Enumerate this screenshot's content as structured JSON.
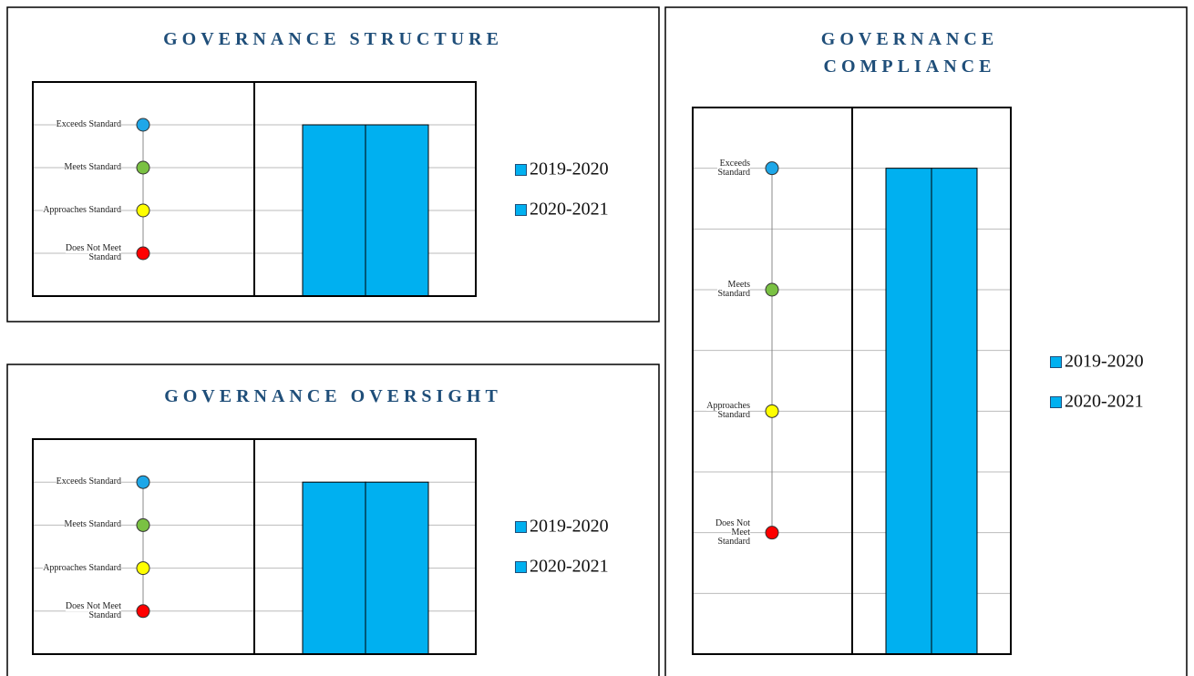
{
  "chart_data": [
    {
      "type": "bar",
      "title": "GOVERNANCE STRUCTURE",
      "categories": [
        null
      ],
      "series": [
        {
          "name": "2019-2020",
          "color": "#00b0f0",
          "values": [
            4
          ]
        },
        {
          "name": "2020-2021",
          "color": "#00b0f0",
          "values": [
            4
          ]
        }
      ],
      "ylim": [
        0,
        5
      ],
      "yticks": [
        {
          "value": 4,
          "label": "Exceeds Standard"
        },
        {
          "value": 3,
          "label": "Meets Standard"
        },
        {
          "value": 2,
          "label": "Approaches Standard"
        },
        {
          "value": 1,
          "label": "Does Not Meet Standard"
        }
      ],
      "tick_colors": [
        "#1ea7e8",
        "#7ac143",
        "#ffff00",
        "#ff0000"
      ],
      "grid": true,
      "legend": "right"
    },
    {
      "type": "bar",
      "title": "GOVERNANCE OVERSIGHT",
      "categories": [
        null
      ],
      "series": [
        {
          "name": "2019-2020",
          "color": "#00b0f0",
          "values": [
            4
          ]
        },
        {
          "name": "2020-2021",
          "color": "#00b0f0",
          "values": [
            4
          ]
        }
      ],
      "ylim": [
        0,
        5
      ],
      "yticks": [
        {
          "value": 4,
          "label": "Exceeds Standard"
        },
        {
          "value": 3,
          "label": "Meets Standard"
        },
        {
          "value": 2,
          "label": "Approaches Standard"
        },
        {
          "value": 1,
          "label": "Does Not Meet Standard"
        }
      ],
      "tick_colors": [
        "#1ea7e8",
        "#7ac143",
        "#ffff00",
        "#ff0000"
      ],
      "grid": true,
      "legend": "right"
    },
    {
      "type": "bar",
      "title": "GOVERNANCE COMPLIANCE",
      "categories": [
        null
      ],
      "series": [
        {
          "name": "2019-2020",
          "color": "#00b0f0",
          "values": [
            8
          ]
        },
        {
          "name": "2020-2021",
          "color": "#00b0f0",
          "values": [
            8
          ]
        }
      ],
      "ylim": [
        0,
        9
      ],
      "yticks": [
        {
          "value": 8,
          "label": "Exceeds Standard"
        },
        {
          "value": 6,
          "label": "Meets Standard"
        },
        {
          "value": 4,
          "label": "Approaches Standard"
        },
        {
          "value": 2,
          "label": "Does Not Meet Standard"
        }
      ],
      "yminorticks": [
        1,
        3,
        5,
        7
      ],
      "tick_colors": [
        "#1ea7e8",
        "#7ac143",
        "#ffff00",
        "#ff0000"
      ],
      "grid": true,
      "legend": "right"
    }
  ]
}
